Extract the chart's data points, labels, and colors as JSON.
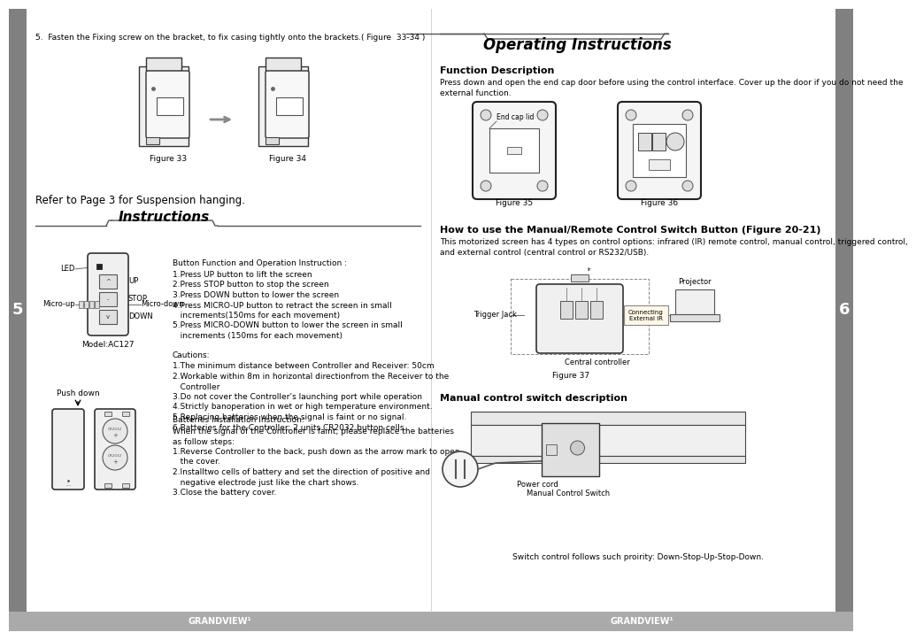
{
  "bg_color": "#ffffff",
  "sidebar_color": "#808080",
  "footer_color": "#aaaaaa",
  "footer_text_color": "#ffffff",
  "footer_text": "GRANDVIEW¹",
  "page_num_left": "5",
  "page_num_right": "6",
  "left_header": "5.  Fasten the Fixing screw on the bracket, to fix casing tightly onto the brackets.( Figure  33-34 )",
  "left_section_label": "Refer to Page 3 for Suspension hanging.",
  "left_title": "Instructions",
  "right_title": "Operating Instructions",
  "btn_instruction_title": "Button Function and Operation Instruction :",
  "btn_instructions": [
    "1.Press UP button to lift the screen",
    "2.Press STOP button to stop the screen",
    "3.Press DOWN button to lower the screen",
    "4.Press MICRO-UP button to retract the screen in small",
    "   increments(150ms for each movement)",
    "5.Press MICRO-DOWN button to lower the screen in small",
    "   increments (150ms for each movement)"
  ],
  "cautions_title": "Cautions:",
  "cautions": [
    "1.The minimum distance between Controller and Receiver: 50cm",
    "2.Workable within 8m in horizontal directionfrom the Receiver to the",
    "   Controller",
    "3.Do not cover the Controller’s launching port while operation",
    "4.Strictly banoperation in wet or high temperature environment.",
    "5.Replacing batteries when the signal is faint or no signal.",
    "6.Batteries for the Controller: 2 units CR2032 button cells."
  ],
  "battery_title": "Batteries Installation Instruction:",
  "battery_text": [
    "When the signal of the Controller is faint, please replace the batteries",
    "as follow steps:",
    "1.Reverse Controller to the back, push down as the arrow mark to open",
    "   the cover.",
    "2.Installtwo cells of battery and set the direction of positive and",
    "   negative electrode just like the chart shows.",
    "3.Close the battery cover."
  ],
  "func_desc_title": "Function Description",
  "func_desc_text": [
    "Press down and open the end cap door before using the control interface. Cover up the door if you do not need the",
    "external function."
  ],
  "how_to_title": "How to use the Manual/Remote Control Switch Button (Figure 20-21)",
  "how_to_text": [
    "This motorized screen has 4 types on control options: infrared (IR) remote control, manual control, triggered control,",
    "and external control (central control or RS232/USB)."
  ],
  "manual_switch_title": "Manual control switch description",
  "switch_note": "Switch control follows such proirity: Down-Stop-Up-Stop-Down.",
  "figure33": "Figure 33",
  "figure34": "Figure 34",
  "figure35": "Figure 35",
  "figure36": "Figure 36",
  "figure37": "Figure 37",
  "led_label": "LED",
  "microup_label": "Micro-up",
  "microdown_label": "Micro-down",
  "model_label": "Model:AC127",
  "pushdown_label": "Push down",
  "up_label": "UP",
  "stop_label": "STOP",
  "down_label": "DOWN",
  "endcap_label": "End cap lid",
  "trigger_label": "Trigger Jack",
  "connecting_label": "Connecting\nExternal IR",
  "projector_label": "Projector",
  "central_label": "Central controller",
  "power_cord_label": "Power cord",
  "manual_switch_label": "Manual Control Switch"
}
